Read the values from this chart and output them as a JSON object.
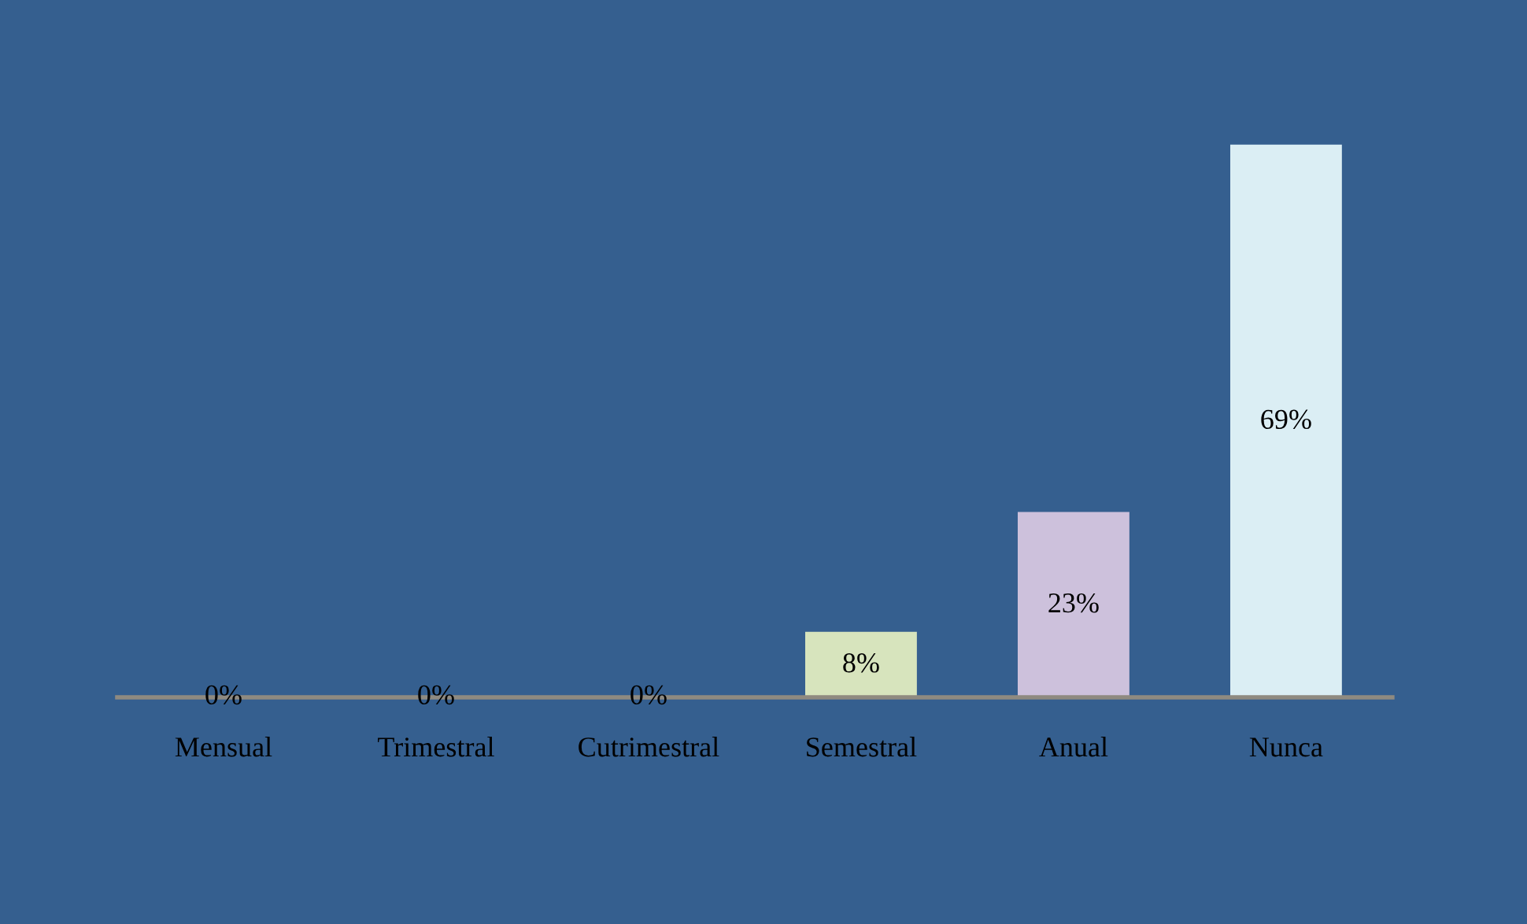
{
  "chart_data": {
    "type": "bar",
    "categories": [
      "Mensual",
      "Trimestral",
      "Cutrimestral",
      "Semestral",
      "Anual",
      "Nunca"
    ],
    "values": [
      0,
      0,
      0,
      8,
      23,
      69
    ],
    "colors": [
      "#968e66",
      "#8e9db3",
      "#b08c8c",
      "#d7e4bd",
      "#cdc1dc",
      "#dbeef4"
    ],
    "value_labels": [
      "0%",
      "0%",
      "0%",
      "8%",
      "23%",
      "69%"
    ]
  }
}
